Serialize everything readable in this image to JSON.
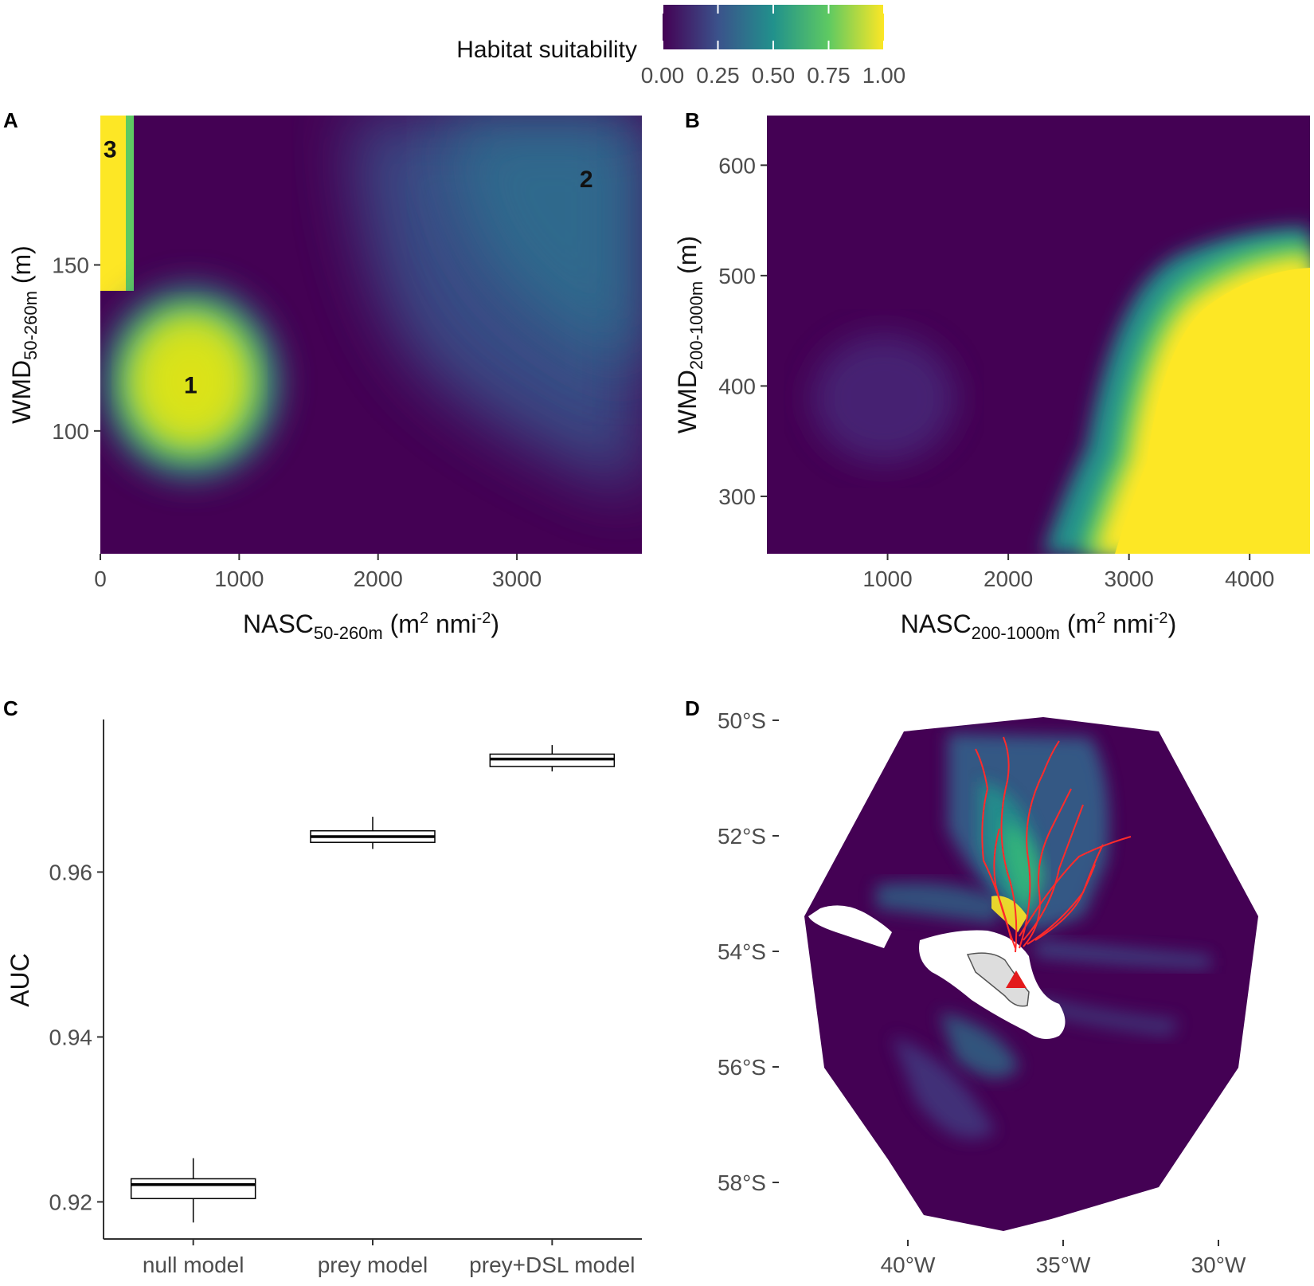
{
  "legend": {
    "title": "Habitat suitability",
    "tick_labels": [
      "0.00",
      "0.25",
      "0.50",
      "0.75",
      "1.00"
    ],
    "range": [
      0,
      1
    ],
    "colors": [
      "#440154",
      "#3b528b",
      "#21918c",
      "#5ec962",
      "#fde725"
    ]
  },
  "panels": {
    "A": {
      "letter": "A"
    },
    "B": {
      "letter": "B"
    },
    "C": {
      "letter": "C"
    },
    "D": {
      "letter": "D"
    }
  },
  "chart_data": [
    {
      "panel": "A",
      "type": "heatmap",
      "xlabel_main": "NASC",
      "xlabel_sub": "50-260m",
      "xlabel_unit_start": " (m",
      "xlabel_unit_sup1": "2",
      "xlabel_unit_mid": " nmi",
      "xlabel_unit_sup2": "-2",
      "xlabel_unit_end": ")",
      "ylabel_main": "WMD",
      "ylabel_sub": "50-260m",
      "ylabel_unit": " (m)",
      "xlim": [
        0,
        3900
      ],
      "ylim": [
        63,
        195
      ],
      "xticks": [
        0,
        1000,
        2000,
        3000
      ],
      "xtick_labels": [
        "0",
        "1000",
        "2000",
        "3000"
      ],
      "yticks": [
        100,
        150
      ],
      "ytick_labels": [
        "100",
        "150"
      ],
      "annotations": [
        {
          "label": "1",
          "x": 650,
          "y": 114
        },
        {
          "label": "2",
          "x": 3500,
          "y": 176
        },
        {
          "label": "3",
          "x": 70,
          "y": 185
        }
      ]
    },
    {
      "panel": "B",
      "type": "heatmap",
      "xlabel_main": "NASC",
      "xlabel_sub": "200-1000m",
      "xlabel_unit_start": " (m",
      "xlabel_unit_sup1": "2",
      "xlabel_unit_mid": " nmi",
      "xlabel_unit_sup2": "-2",
      "xlabel_unit_end": ")",
      "ylabel_main": "WMD",
      "ylabel_sub": "200-1000m",
      "ylabel_unit": " (m)",
      "xlim": [
        0,
        4500
      ],
      "ylim": [
        248,
        645
      ],
      "xticks": [
        1000,
        2000,
        3000,
        4000
      ],
      "xtick_labels": [
        "1000",
        "2000",
        "3000",
        "4000"
      ],
      "yticks": [
        300,
        400,
        500,
        600
      ],
      "ytick_labels": [
        "300",
        "400",
        "500",
        "600"
      ]
    },
    {
      "panel": "C",
      "type": "box",
      "ylabel": "AUC",
      "ylim": [
        0.9155,
        0.9785
      ],
      "yticks": [
        0.92,
        0.94,
        0.96
      ],
      "ytick_labels": [
        "0.92",
        "0.94",
        "0.96"
      ],
      "categories": [
        "null model",
        "prey model",
        "prey+DSL model"
      ],
      "boxes": [
        {
          "min": 0.9175,
          "q1": 0.9204,
          "median": 0.9221,
          "q3": 0.9228,
          "max": 0.9253
        },
        {
          "min": 0.9628,
          "q1": 0.9636,
          "median": 0.9643,
          "q3": 0.965,
          "max": 0.9667
        },
        {
          "min": 0.9722,
          "q1": 0.9728,
          "median": 0.9737,
          "q3": 0.9743,
          "max": 0.9754
        }
      ]
    },
    {
      "panel": "D",
      "type": "map",
      "lon_range": [
        -42,
        -27
      ],
      "lat_range": [
        -59,
        -50
      ],
      "yticks": [
        -50,
        -52,
        -54,
        -56,
        -58
      ],
      "ytick_labels": [
        "50°S",
        "52°S",
        "54°S",
        "56°S",
        "58°S"
      ],
      "xticks": [
        -40,
        -35,
        -30
      ],
      "xtick_labels": [
        "40°W",
        "35°W",
        "30°W"
      ],
      "colony": {
        "lon": -36.2,
        "lat": -54.4
      }
    }
  ]
}
